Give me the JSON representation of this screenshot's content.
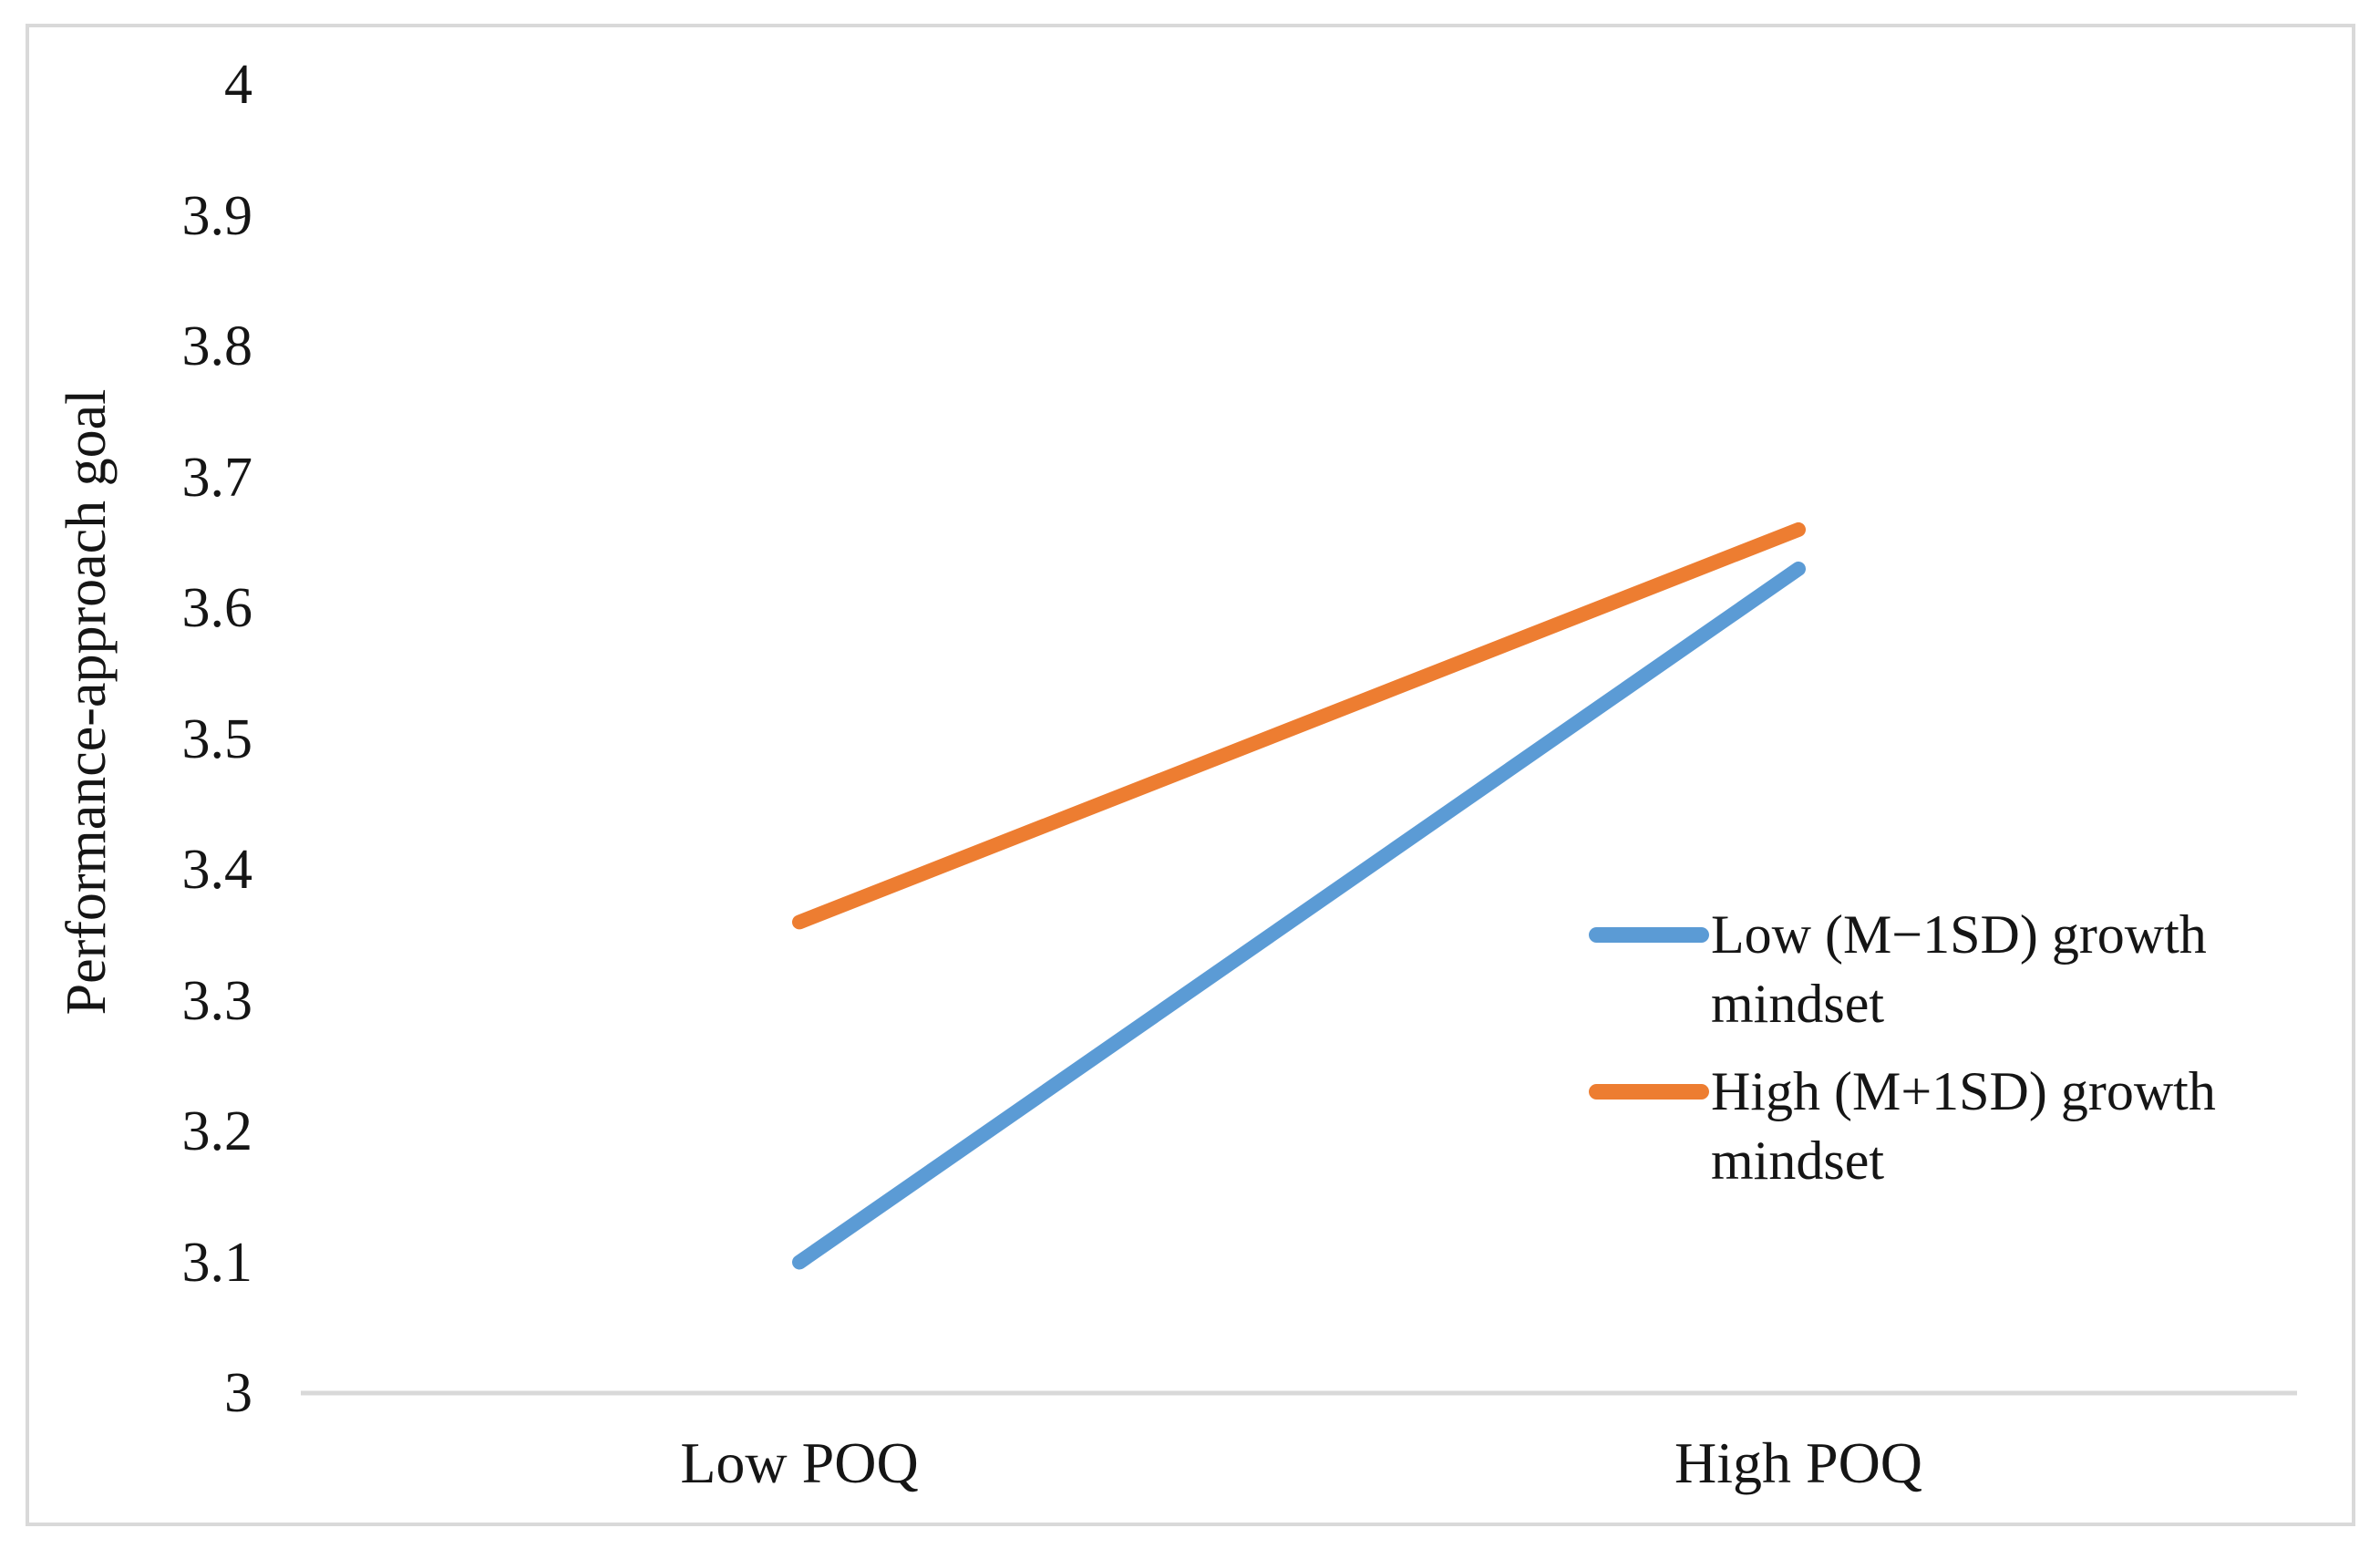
{
  "chart_data": {
    "type": "line",
    "categories": [
      "Low POQ",
      "High POQ"
    ],
    "series": [
      {
        "name": "Low (M−1SD) growth mindset",
        "color": "#5B9BD5",
        "values": [
          3.1,
          3.63
        ]
      },
      {
        "name": "High (M+1SD) growth mindset",
        "color": "#ED7D31",
        "values": [
          3.36,
          3.66
        ]
      }
    ],
    "title": "",
    "xlabel": "",
    "ylabel": "Performance-approach goal",
    "ylim": [
      3,
      4
    ],
    "yticks": [
      "4",
      "3.9",
      "3.8",
      "3.7",
      "3.6",
      "3.5",
      "3.4",
      "3.3",
      "3.2",
      "3.1",
      "3"
    ],
    "grid": "off",
    "legend_position": "middle-right",
    "axis_line_color": "#D9D9D9",
    "frame_border_color": "#D9D9D9",
    "text_color": "#151515"
  }
}
